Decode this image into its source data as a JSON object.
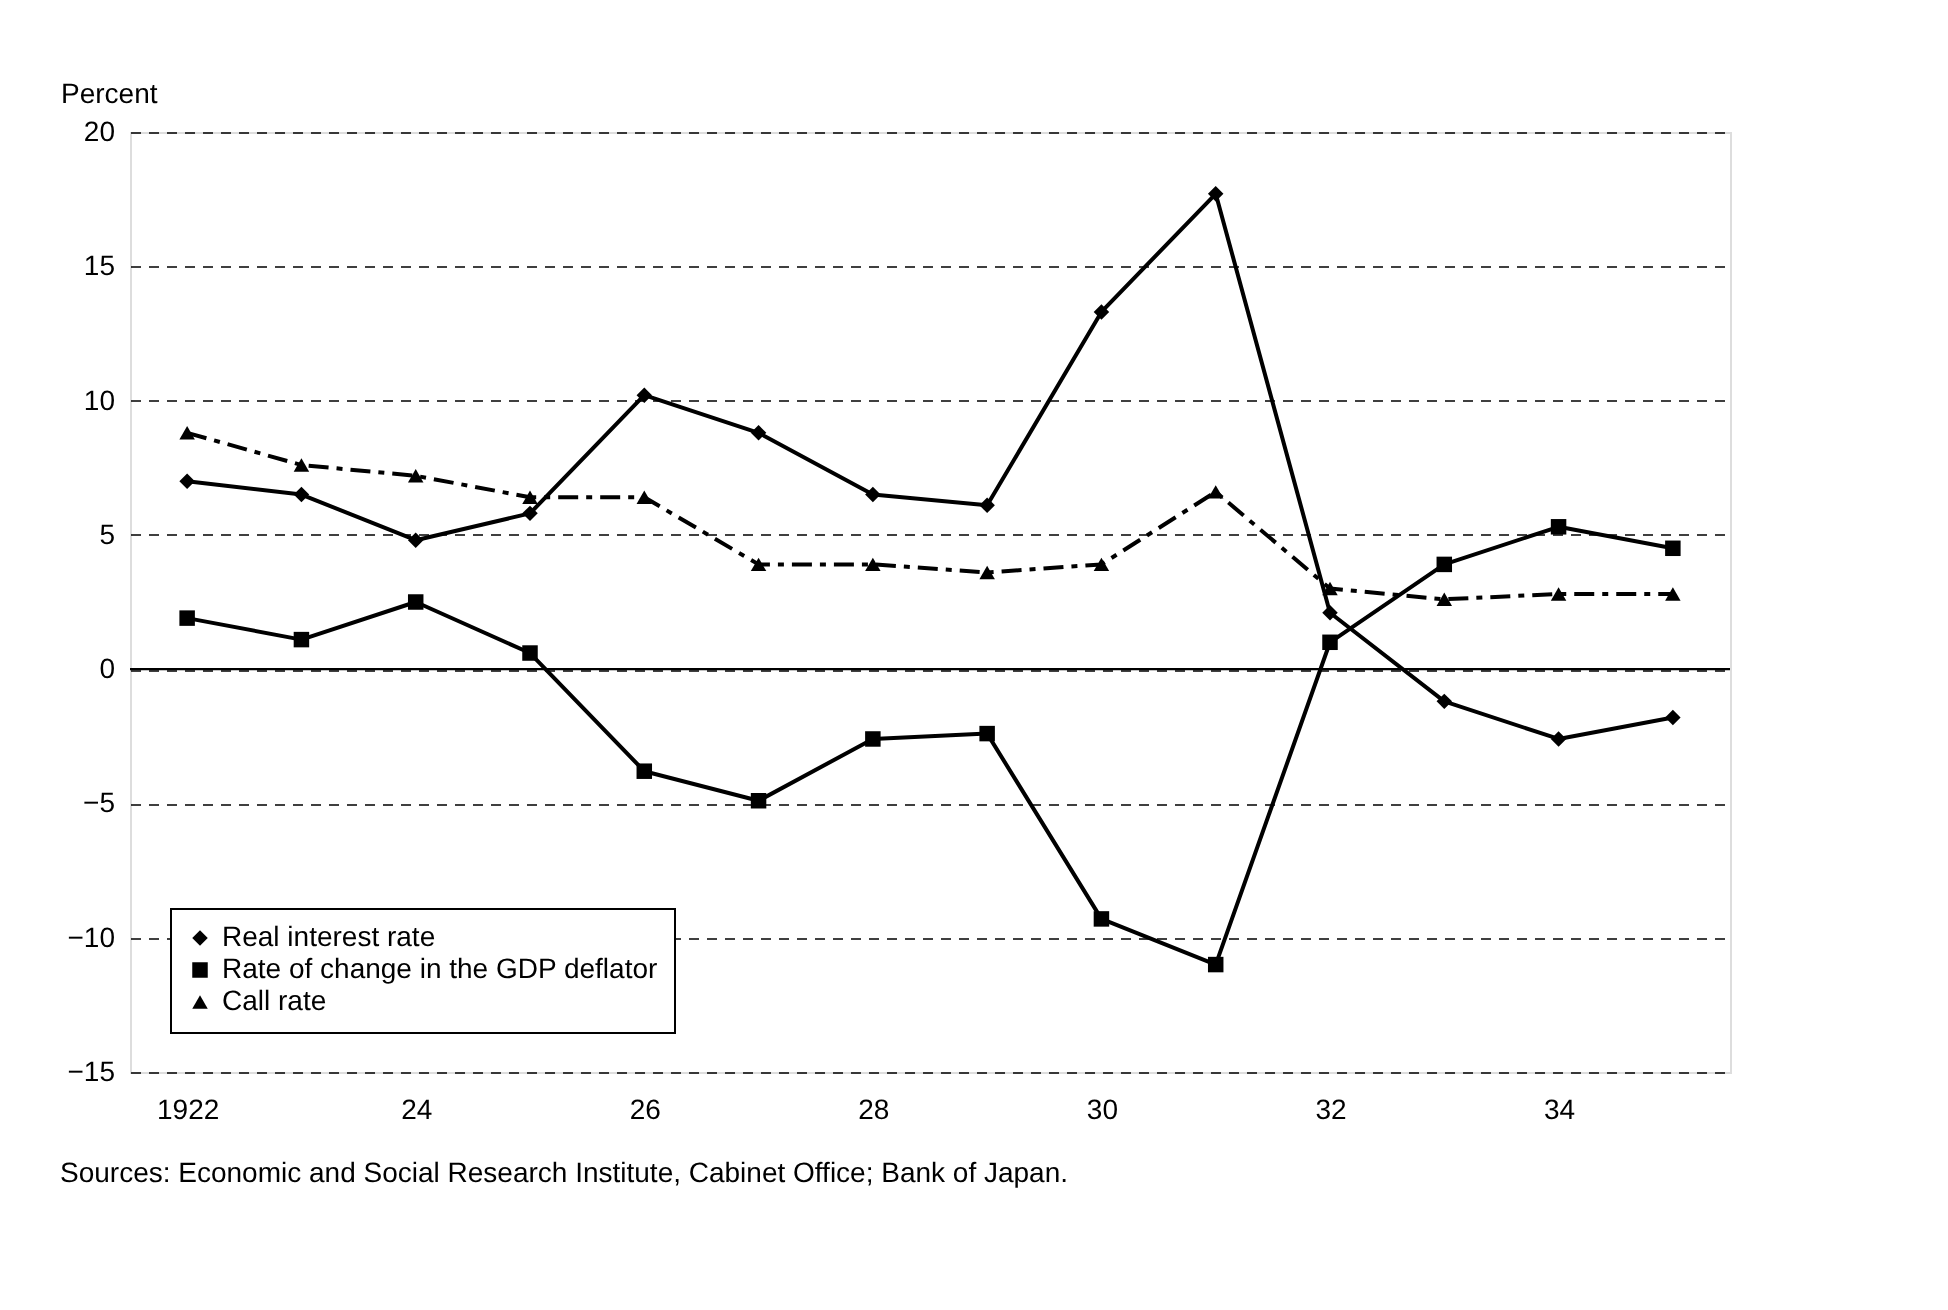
{
  "chart_data": {
    "type": "line",
    "ylabel": "Percent",
    "categories": [
      "1922",
      null,
      "24",
      null,
      "26",
      null,
      "28",
      null,
      "30",
      null,
      "32",
      null,
      "34",
      null
    ],
    "series": [
      {
        "name": "Real interest rate",
        "color": "#000000",
        "marker": "diamond",
        "line_style": "solid",
        "values": [
          7.0,
          6.5,
          4.8,
          5.8,
          10.2,
          8.8,
          6.5,
          6.1,
          13.3,
          17.7,
          2.1,
          -1.2,
          -2.6,
          -1.8
        ]
      },
      {
        "name": "Rate of change in the GDP deflator",
        "color": "#000000",
        "marker": "square",
        "line_style": "solid",
        "values": [
          1.9,
          1.1,
          2.5,
          0.6,
          -3.8,
          -4.9,
          -2.6,
          -2.4,
          -9.3,
          -11.0,
          1.0,
          3.9,
          5.3,
          4.5
        ]
      },
      {
        "name": "Call rate",
        "color": "#000000",
        "marker": "triangle",
        "line_style": "dashed",
        "values": [
          8.8,
          7.6,
          7.2,
          6.4,
          6.4,
          3.9,
          3.9,
          3.6,
          3.9,
          6.6,
          3.0,
          2.6,
          2.8,
          2.8
        ]
      }
    ],
    "ylim": [
      -15,
      20
    ],
    "yticks": [
      -15,
      -10,
      -5,
      0,
      5,
      10,
      15,
      20
    ],
    "grid": "y",
    "legend": "bottom left",
    "ref_lines": [
      {
        "axis": "y",
        "value": 0,
        "label": null
      }
    ],
    "annotations": [
      "Sources: Economic and Social Research Institute, Cabinet Office; Bank of Japan."
    ]
  }
}
